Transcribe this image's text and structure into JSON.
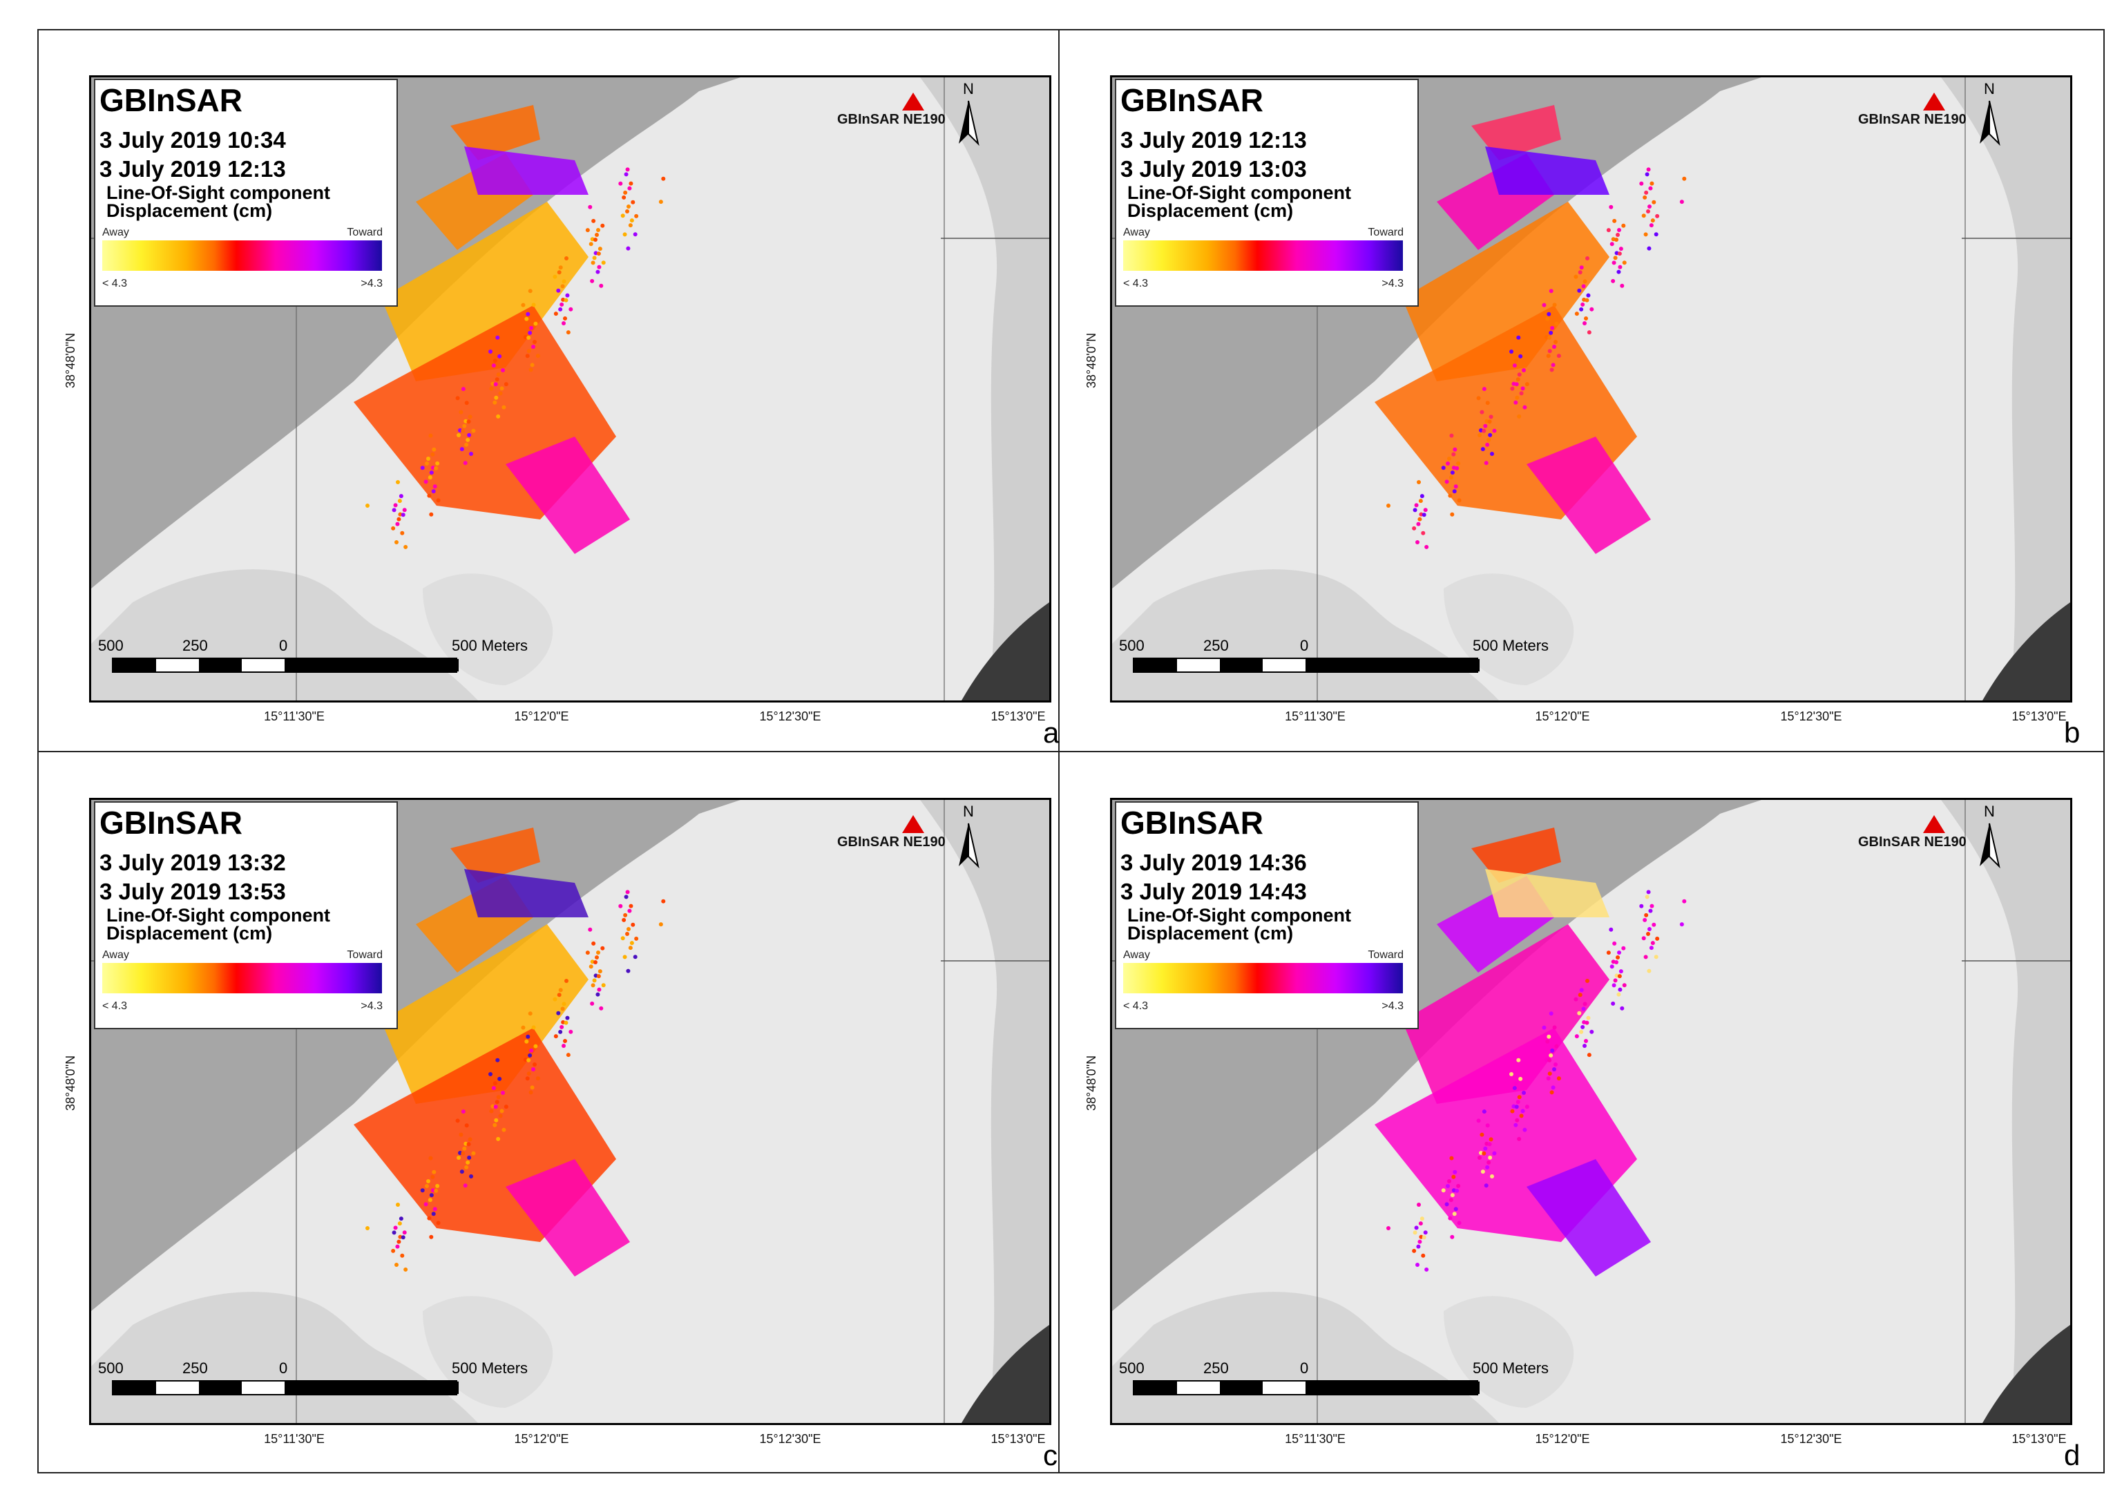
{
  "panels": [
    {
      "letter": "a",
      "title": "GBInSAR",
      "date_start": "3 July 2019 10:34",
      "date_end": "3 July 2019 12:13",
      "subtitle_line1": "Line-Of-Sight component",
      "subtitle_line2": "Displacement (cm)",
      "ramp_left_label": "Away",
      "ramp_right_label": "Toward",
      "ramp_min_label": "< 4.3",
      "ramp_max_label": ">4.3",
      "station_label": "GBInSAR NE190"
    },
    {
      "letter": "b",
      "title": "GBInSAR",
      "date_start": "3 July 2019 12:13",
      "date_end": "3 July 2019 13:03",
      "subtitle_line1": "Line-Of-Sight component",
      "subtitle_line2": "Displacement (cm)",
      "ramp_left_label": "Away",
      "ramp_right_label": "Toward",
      "ramp_min_label": "< 4.3",
      "ramp_max_label": ">4.3",
      "station_label": "GBInSAR NE190"
    },
    {
      "letter": "c",
      "title": "GBInSAR",
      "date_start": "3 July 2019 13:32",
      "date_end": "3 July 2019 13:53",
      "subtitle_line1": "Line-Of-Sight component",
      "subtitle_line2": "Displacement (cm)",
      "ramp_left_label": "Away",
      "ramp_right_label": "Toward",
      "ramp_min_label": "< 4.3",
      "ramp_max_label": ">4.3",
      "station_label": "GBInSAR NE190"
    },
    {
      "letter": "d",
      "title": "GBInSAR",
      "date_start": "3 July 2019 14:36",
      "date_end": "3 July 2019 14:43",
      "subtitle_line1": "Line-Of-Sight component",
      "subtitle_line2": "Displacement (cm)",
      "ramp_left_label": "Away",
      "ramp_right_label": "Toward",
      "ramp_min_label": "< 4.3",
      "ramp_max_label": ">4.3",
      "station_label": "GBInSAR NE190"
    }
  ],
  "scale": {
    "l1": "500",
    "l2": "250",
    "l3": "0",
    "l4": "500 Meters"
  },
  "lon_ticks": [
    "15°11'30\"E",
    "15°12'0\"E",
    "15°12'30\"E",
    "15°13'0\"E"
  ],
  "lat_tick": "38°48'0\"N",
  "north_label": "N",
  "colors": {
    "sea": "#a6a6a6",
    "land": "#e9e9e9",
    "station": "#e00000"
  }
}
